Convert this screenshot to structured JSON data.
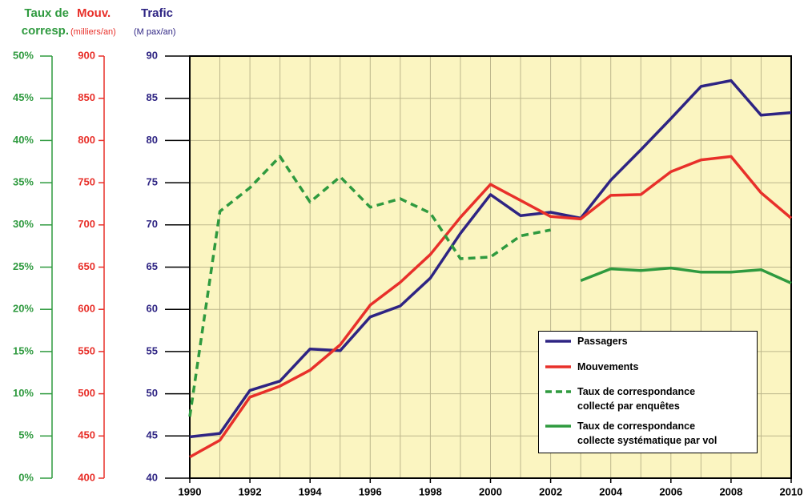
{
  "chart_data": {
    "type": "line",
    "x": [
      1990,
      1991,
      1992,
      1993,
      1994,
      1995,
      1996,
      1997,
      1998,
      1999,
      2000,
      2001,
      2002,
      2003,
      2004,
      2005,
      2006,
      2007,
      2008,
      2009,
      2010
    ],
    "xlim": [
      1990,
      2010
    ],
    "xticks": [
      1990,
      1992,
      1994,
      1996,
      1998,
      2000,
      2002,
      2004,
      2006,
      2008,
      2010
    ],
    "axes": {
      "y3": {
        "title": "Taux de\ncorresp.",
        "color": "#2f9a3f"
      },
      "y2": {
        "title": "Mouv.",
        "unit": "(milliers/an)",
        "color": "#e8302a"
      },
      "y": {
        "title": "Trafic",
        "unit": "(M pax/an)",
        "color": "#2e2483"
      }
    },
    "ylim": [
      40,
      90
    ],
    "yticks": [
      40,
      45,
      50,
      55,
      60,
      65,
      70,
      75,
      80,
      85,
      90
    ],
    "y2lim": [
      400,
      900
    ],
    "y2ticks": [
      400,
      450,
      500,
      550,
      600,
      650,
      700,
      750,
      800,
      850,
      900
    ],
    "y3lim": [
      0,
      50
    ],
    "y3ticks": [
      {
        "value": 0,
        "label": "0%"
      },
      {
        "value": 5,
        "label": "5%"
      },
      {
        "value": 10,
        "label": "10%"
      },
      {
        "value": 15,
        "label": "15%"
      },
      {
        "value": 20,
        "label": "20%"
      },
      {
        "value": 25,
        "label": "25%"
      },
      {
        "value": 30,
        "label": "30%"
      },
      {
        "value": 35,
        "label": "35%"
      },
      {
        "value": 40,
        "label": "40%"
      },
      {
        "value": 45,
        "label": "45%"
      },
      {
        "value": 50,
        "label": "50%"
      }
    ],
    "grid": true,
    "series": [
      {
        "name": "Passagers",
        "color": "#2e2483",
        "axis": "y",
        "dashed": false,
        "values": [
          44.9,
          45.3,
          50.4,
          51.5,
          55.3,
          55.1,
          59.1,
          60.4,
          63.7,
          69.0,
          73.6,
          71.1,
          71.5,
          70.8,
          75.3,
          78.9,
          82.6,
          86.4,
          87.1,
          83.0,
          83.3
        ]
      },
      {
        "name": "Mouvements",
        "color": "#e8302a",
        "axis": "y2",
        "dashed": false,
        "values": [
          425,
          445,
          496,
          509,
          528,
          558,
          605,
          632,
          665,
          709,
          748,
          729,
          710,
          707,
          735,
          736,
          763,
          777,
          781,
          738,
          708
        ]
      },
      {
        "name": "Taux de correspondance\ncollecté par enquêtes",
        "color": "#2f9a3f",
        "axis": "y3",
        "dashed": true,
        "values": [
          7.3,
          31.6,
          34.4,
          38.1,
          32.7,
          35.7,
          32.1,
          33.1,
          31.4,
          26.0,
          26.2,
          28.7,
          29.4,
          null,
          null,
          null,
          null,
          null,
          null,
          null,
          null
        ]
      },
      {
        "name": "Taux de correspondance\ncollecte systématique par vol",
        "color": "#2f9a3f",
        "axis": "y3",
        "dashed": false,
        "values": [
          null,
          null,
          null,
          null,
          null,
          null,
          null,
          null,
          null,
          null,
          null,
          null,
          null,
          23.4,
          24.8,
          24.6,
          24.9,
          24.4,
          24.4,
          24.7,
          23.1
        ]
      }
    ]
  }
}
